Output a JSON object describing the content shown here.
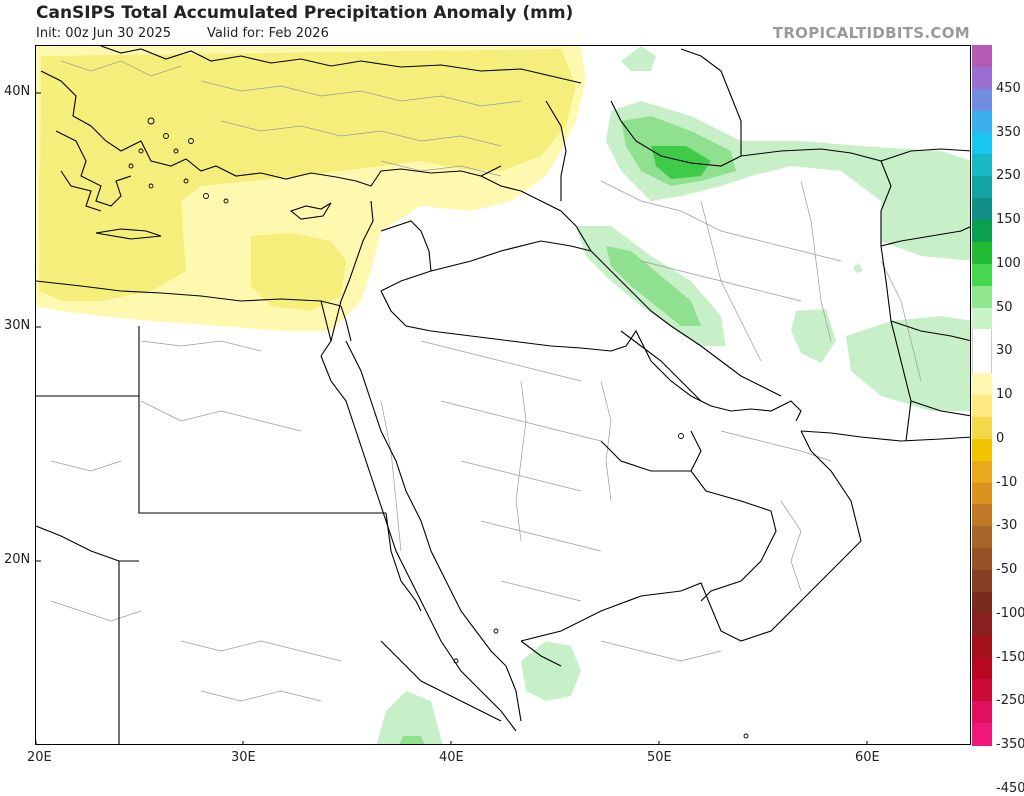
{
  "header": {
    "title": "CanSIPS Total Accumulated Precipitation Anomaly (mm)",
    "init": "Init: 00z Jun 30 2025",
    "valid": "Valid for: Feb 2026",
    "watermark": "TROPICALTIDBITS.COM"
  },
  "map": {
    "lat_labels": [
      {
        "text": "40N"
      },
      {
        "text": "30N"
      },
      {
        "text": "20N"
      }
    ],
    "lon_labels": [
      {
        "text": "20E"
      },
      {
        "text": "30E"
      },
      {
        "text": "40E"
      },
      {
        "text": "50E"
      },
      {
        "text": "60E"
      }
    ],
    "colors": {
      "dry_light": "#fff9b0",
      "dry_med": "#f6ee7a",
      "wet_light": "#c8f0c8",
      "wet_med": "#8fe08f",
      "wet_strong": "#3fca4a",
      "land": "#ffffff",
      "border": "#000000",
      "minor_border": "#9b9b9b"
    }
  },
  "colorbar": {
    "labels": [
      "450",
      "350",
      "250",
      "150",
      "100",
      "50",
      "30",
      "10",
      "0",
      "-10",
      "-30",
      "-50",
      "-100",
      "-150",
      "-250",
      "-350",
      "-450"
    ],
    "segments": [
      "#b35ab3",
      "#9a6fcf",
      "#6f8ee0",
      "#3bb0ef",
      "#16c8f0",
      "#14b9c4",
      "#12a3a3",
      "#0f8f85",
      "#0aa050",
      "#22bb33",
      "#45d84f",
      "#8fe88f",
      "#c8f5c8",
      "#ffffff",
      "#ffffff",
      "#fff7b0",
      "#fde980",
      "#f5d84a",
      "#f2c500",
      "#e9a91a",
      "#d9921c",
      "#c07a25",
      "#a8652a",
      "#955325",
      "#843f20",
      "#7a2b1b",
      "#8a1f1f",
      "#a3101a",
      "#b8081f",
      "#cc0a3a",
      "#e0105e",
      "#ef1878"
    ]
  }
}
